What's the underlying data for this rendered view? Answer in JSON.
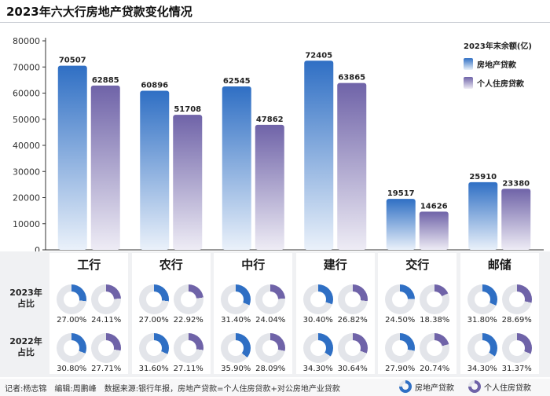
{
  "title": "2023年六大行房地产贷款变化情况",
  "chart_data": {
    "type": "bar",
    "categories": [
      "工行",
      "农行",
      "中行",
      "建行",
      "交行",
      "邮储"
    ],
    "series": [
      {
        "name": "房地产贷款",
        "values": [
          70507,
          60896,
          62545,
          72405,
          19517,
          25910
        ]
      },
      {
        "name": "个人住房贷款",
        "values": [
          62885,
          51708,
          47862,
          63865,
          14626,
          23380
        ]
      }
    ],
    "ylim": [
      0,
      80000
    ],
    "yticks": [
      0,
      10000,
      20000,
      30000,
      40000,
      50000,
      60000,
      70000,
      80000
    ],
    "legend_title": "2023年末余额(亿)",
    "legend_position": "top-right",
    "data_labels": true,
    "grid": false
  },
  "share_table": {
    "row_labels": [
      "2023年\n占比",
      "2022年\n占比"
    ],
    "rows": [
      {
        "real_estate": [
          27.0,
          27.0,
          31.4,
          30.4,
          24.5,
          31.8
        ],
        "housing": [
          24.11,
          22.92,
          24.04,
          26.82,
          18.38,
          28.69
        ]
      },
      {
        "real_estate": [
          30.8,
          31.6,
          35.9,
          34.3,
          27.9,
          34.3
        ],
        "housing": [
          27.71,
          27.11,
          28.09,
          30.64,
          20.74,
          31.37
        ]
      }
    ]
  },
  "colors": {
    "real_estate_top": "#2f6fc4",
    "real_estate_bottom": "#eaf1fa",
    "housing_top": "#6f63a8",
    "housing_bottom": "#eeecf5",
    "donut_rest": "#e3e5ea"
  },
  "footer": {
    "credit": "记者:杨志锦　编辑:周鹏峰　数据来源:银行年报，房地产贷款=个人住房贷款+对公房地产业贷款",
    "legend_real_estate": "房地产贷款",
    "legend_housing": "个人住房贷款"
  }
}
